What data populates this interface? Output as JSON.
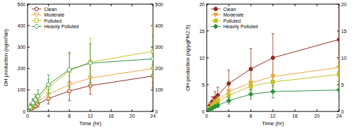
{
  "chart_data": [
    {
      "type": "line",
      "x_label": "Time (hr)",
      "y_label": "OH production (ng/m³air)",
      "x": [
        0,
        0.5,
        1,
        1.5,
        2,
        4,
        8,
        12,
        24
      ],
      "xlim": [
        0,
        24
      ],
      "xticks": [
        0,
        4,
        8,
        12,
        16,
        20,
        24
      ],
      "ylim": [
        0,
        500
      ],
      "yticks": [
        0,
        100,
        200,
        300,
        400,
        500
      ],
      "y2lim": [
        0,
        500
      ],
      "y2ticks": [
        0,
        100,
        200,
        300,
        400,
        500
      ],
      "legend": "upper-left",
      "series": [
        {
          "name": "Clean",
          "color": "#8b2a1c",
          "marker": "open-circle",
          "values": [
            0,
            10,
            18,
            25,
            35,
            60,
            95,
            120,
            165
          ],
          "errors": [
            5,
            8,
            10,
            10,
            15,
            25,
            45,
            40,
            55
          ]
        },
        {
          "name": "Moderate",
          "color": "#f0a040",
          "marker": "open-triangle-down",
          "values": [
            0,
            12,
            25,
            35,
            45,
            80,
            125,
            155,
            200
          ],
          "errors": [
            10,
            10,
            12,
            15,
            20,
            30,
            40,
            50,
            60
          ]
        },
        {
          "name": "Polluted",
          "color": "#c2c226",
          "marker": "open-square",
          "values": [
            0,
            18,
            35,
            50,
            60,
            110,
            190,
            230,
            280
          ],
          "errors": [
            10,
            15,
            20,
            20,
            25,
            40,
            80,
            110,
            120
          ]
        },
        {
          "name": "Heavily Polluted",
          "color": "#2f8f3f",
          "marker": "open-diamond",
          "values": [
            0,
            20,
            40,
            55,
            70,
            125,
            195,
            225,
            245
          ],
          "errors": [
            10,
            15,
            20,
            25,
            30,
            45,
            80,
            90,
            110
          ]
        }
      ]
    },
    {
      "type": "line",
      "x_label": "Time (hr)",
      "y_label": "OH production (ng/μgPM2.5)",
      "x": [
        0,
        0.5,
        1,
        1.5,
        2,
        4,
        8,
        12,
        24
      ],
      "xlim": [
        0,
        24
      ],
      "xticks": [
        0,
        4,
        8,
        12,
        16,
        20,
        24
      ],
      "ylim": [
        0,
        20
      ],
      "yticks": [
        0,
        5,
        10,
        15,
        20
      ],
      "y2lim": [
        0,
        20
      ],
      "y2ticks": [
        0,
        5,
        10,
        15,
        20
      ],
      "legend": "upper-left",
      "series": [
        {
          "name": "Clean",
          "color": "#8b2a1c",
          "marker": "circle",
          "values": [
            0,
            1.0,
            1.8,
            2.5,
            3.0,
            5.2,
            7.9,
            10.0,
            13.4
          ],
          "errors": [
            0.3,
            0.6,
            1.0,
            1.2,
            1.5,
            2.5,
            3.8,
            4.5,
            6.0
          ]
        },
        {
          "name": "Moderate",
          "color": "#f0a040",
          "marker": "triangle-down",
          "values": [
            0,
            0.6,
            1.2,
            1.7,
            2.1,
            3.7,
            5.3,
            6.5,
            8.2
          ],
          "errors": [
            0.2,
            0.3,
            0.5,
            0.6,
            0.7,
            1.0,
            1.5,
            2.0,
            2.5
          ]
        },
        {
          "name": "Polluted",
          "color": "#c2c226",
          "marker": "square",
          "values": [
            0,
            0.5,
            1.0,
            1.4,
            1.8,
            3.0,
            4.7,
            5.5,
            6.9
          ],
          "errors": [
            0.2,
            0.3,
            0.4,
            0.5,
            0.6,
            0.8,
            1.2,
            1.5,
            2.0
          ]
        },
        {
          "name": "Heavily Polluted",
          "color": "#2f8f3f",
          "marker": "diamond",
          "values": [
            0,
            0.3,
            0.6,
            0.9,
            1.1,
            2.0,
            3.2,
            3.7,
            4.0
          ],
          "errors": [
            0.1,
            0.2,
            0.3,
            0.3,
            0.4,
            0.6,
            0.9,
            1.2,
            1.5
          ]
        }
      ]
    }
  ]
}
